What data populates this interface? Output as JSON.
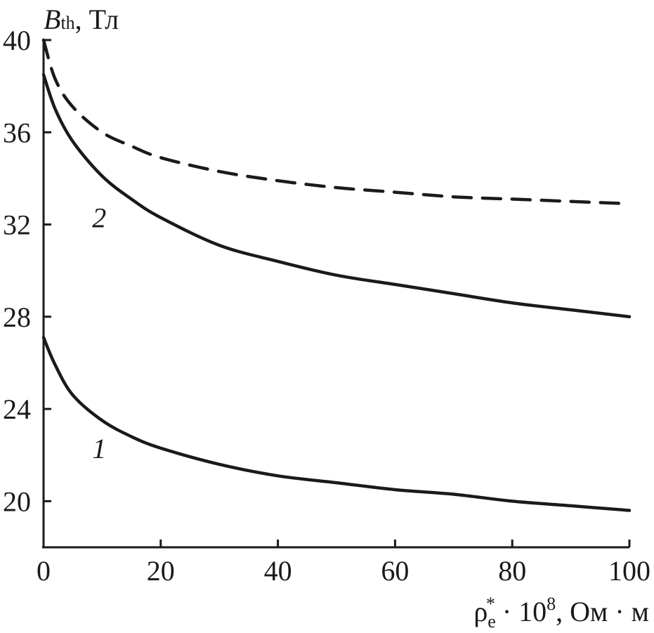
{
  "chart_data": {
    "type": "line",
    "x_axis": {
      "label": {
        "base": "ρ",
        "sub": "e",
        "sup": "*",
        "rest": " · 10",
        "exp": "8",
        "unit": ", Ом · м"
      },
      "range": [
        0,
        100
      ],
      "ticks": [
        0,
        20,
        40,
        60,
        80,
        100
      ]
    },
    "y_axis": {
      "label": {
        "base": "B",
        "sub": "th",
        "unit": ", Тл"
      },
      "range": [
        18,
        40
      ],
      "ticks": [
        20,
        24,
        28,
        32,
        36,
        40
      ]
    },
    "grid": false,
    "series": [
      {
        "name": "1",
        "style": "solid",
        "x": [
          0,
          2,
          5,
          10,
          15,
          20,
          30,
          40,
          50,
          60,
          70,
          80,
          90,
          100
        ],
        "y": [
          27.1,
          25.9,
          24.6,
          23.5,
          22.8,
          22.3,
          21.6,
          21.1,
          20.8,
          20.5,
          20.3,
          20.0,
          19.8,
          19.6
        ]
      },
      {
        "name": "2",
        "style": "solid",
        "x": [
          0,
          2,
          5,
          10,
          15,
          20,
          30,
          40,
          50,
          60,
          70,
          80,
          90,
          100
        ],
        "y": [
          38.5,
          37.0,
          35.6,
          34.1,
          33.1,
          32.3,
          31.1,
          30.4,
          29.8,
          29.4,
          29.0,
          28.6,
          28.3,
          28.0
        ]
      },
      {
        "style": "dashed",
        "x": [
          0,
          2,
          5,
          10,
          15,
          20,
          30,
          40,
          50,
          60,
          70,
          80,
          90,
          100
        ],
        "y": [
          40.0,
          38.3,
          37.1,
          36.0,
          35.4,
          34.9,
          34.3,
          33.9,
          33.6,
          33.4,
          33.2,
          33.1,
          33.0,
          32.9
        ]
      }
    ],
    "curve_labels": [
      {
        "text": "1",
        "x": 9.5,
        "y": 22.3
      },
      {
        "text": "2",
        "x": 9.5,
        "y": 32.3
      }
    ]
  }
}
